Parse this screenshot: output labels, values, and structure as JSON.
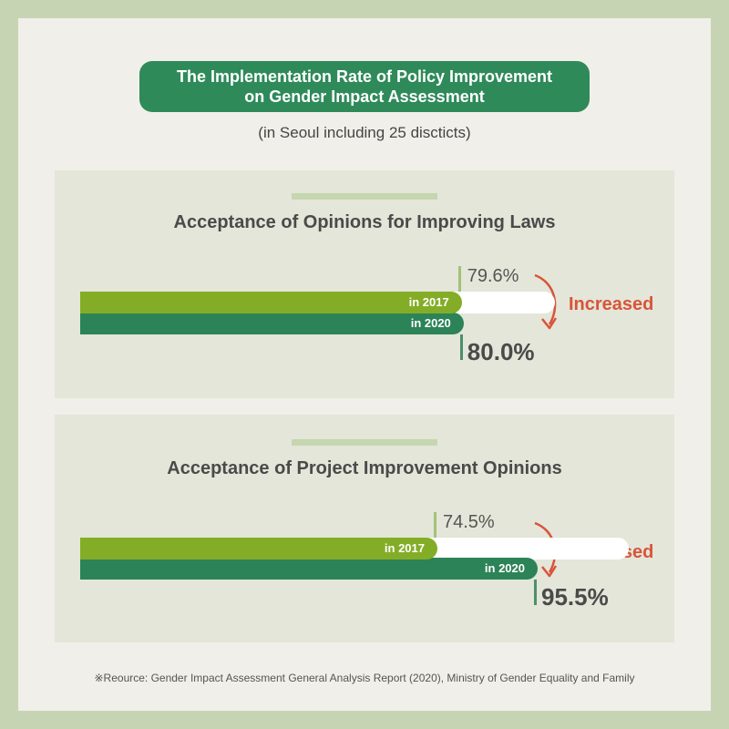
{
  "header": {
    "title_line1": "The Implementation Rate of Policy Improvement",
    "title_line2": "on Gender Impact Assessment",
    "subtitle": "(in Seoul including 25 discticts)"
  },
  "chart_data": [
    {
      "type": "bar",
      "title": "Acceptance of Opinions for Improving Laws",
      "categories": [
        "in 2017",
        "in 2020"
      ],
      "values": [
        79.6,
        80.0
      ],
      "value_labels": [
        "79.6%",
        "80.0%"
      ],
      "annotation": "Increased"
    },
    {
      "type": "bar",
      "title": "Acceptance of Project Improvement Opinions",
      "categories": [
        "in 2017",
        "in 2020"
      ],
      "values": [
        74.5,
        95.5
      ],
      "value_labels": [
        "74.5%",
        "95.5%"
      ],
      "annotation": "Increased"
    }
  ],
  "footer": {
    "source": "※Reource: Gender Impact Assessment General Analysis Report (2020), Ministry of Gender Equality and Family"
  },
  "colors": {
    "bar_2017": "#84ad27",
    "bar_2020": "#2c8357",
    "accent": "#d9543a",
    "title_bg": "#2f8a5a"
  }
}
